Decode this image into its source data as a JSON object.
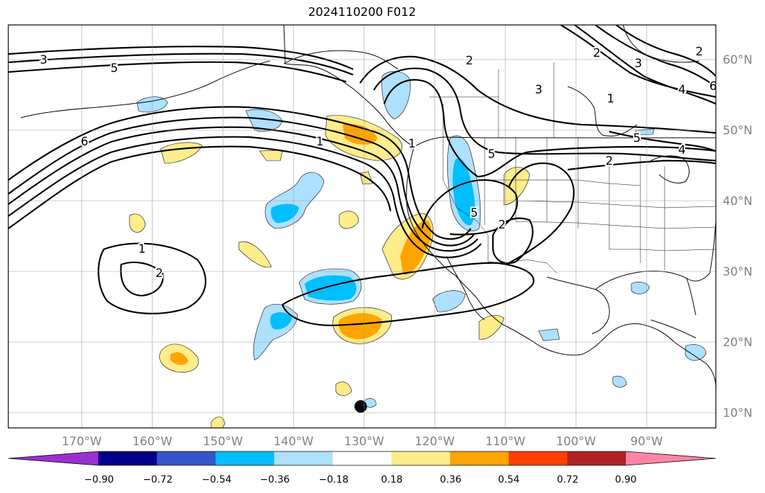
{
  "title": "2024110200 F012",
  "lon_labels": [
    "170°W",
    "160°W",
    "150°W",
    "140°W",
    "130°W",
    "120°W",
    "110°W",
    "100°W",
    "90°W"
  ],
  "lat_labels": [
    "60°N",
    "50°N",
    "40°N",
    "30°N",
    "20°N",
    "10°N"
  ],
  "contour_labels": [
    "3",
    "5",
    "6",
    "1",
    "1",
    "2",
    "1",
    "2",
    "3",
    "2",
    "3",
    "1",
    "5",
    "4",
    "6",
    "5",
    "4",
    "2",
    "5",
    "2",
    "2"
  ],
  "colorbar": {
    "colors": [
      "#9b30d0",
      "#00008b",
      "#3356cc",
      "#00bfff",
      "#aee0ff",
      "#ffffff",
      "#ffec8b",
      "#ffa500",
      "#ff4000",
      "#b22222",
      "#ff85a6"
    ],
    "tick_labels": [
      "−0.90",
      "−0.72",
      "−0.54",
      "−0.36",
      "−0.18",
      "0.18",
      "0.36",
      "0.54",
      "0.72",
      "0.90"
    ]
  },
  "colors": {
    "light_blue": "#aee0ff",
    "blue": "#00bfff",
    "yellow": "#ffec8b",
    "orange": "#ffa500",
    "red": "#ff4000",
    "grid": "#999999",
    "axis_text": "#808080"
  }
}
